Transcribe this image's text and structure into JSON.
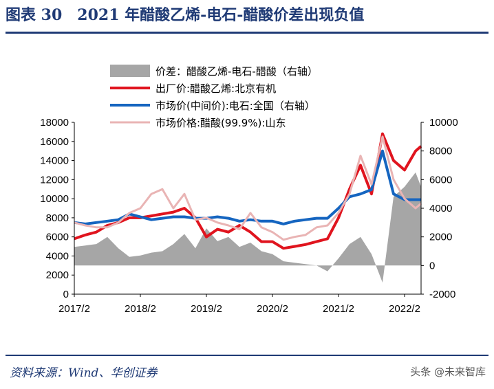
{
  "figure": {
    "title": "图表 30　2021 年醋酸乙烯-电石-醋酸价差出现负值",
    "source": "资料来源：Wind、华创证券",
    "watermark": "头条 @未来智库"
  },
  "colors": {
    "title_blue": "#1f3a75",
    "spread_gray": "#a6a6a6",
    "red": "#e0141e",
    "blue": "#1565c0",
    "pink": "#e9b4b4"
  },
  "chart_data": {
    "type": "line",
    "title": "",
    "xlabel": "",
    "ylabel": "",
    "x_ticks": [
      "2017/2",
      "2018/2",
      "2019/2",
      "2020/2",
      "2021/2",
      "2022/2"
    ],
    "xlim": [
      "2017-02",
      "2022-05"
    ],
    "left_axis": {
      "ylim": [
        0,
        18000
      ],
      "ticks": [
        0,
        2000,
        4000,
        6000,
        8000,
        10000,
        12000,
        14000,
        16000,
        18000
      ]
    },
    "right_axis": {
      "ylim": [
        -2000,
        10000
      ],
      "ticks": [
        -2000,
        0,
        2000,
        4000,
        6000,
        8000,
        10000
      ]
    },
    "legend": {
      "position": "top"
    },
    "grid": false,
    "series": [
      {
        "name": "价差：醋酸乙烯-电石-醋酸（右轴）",
        "kind": "area",
        "axis": "right",
        "color": "#a6a6a6",
        "x": [
          "2017-02",
          "2017-04",
          "2017-06",
          "2017-08",
          "2017-10",
          "2017-12",
          "2018-02",
          "2018-04",
          "2018-06",
          "2018-08",
          "2018-10",
          "2018-12",
          "2019-02",
          "2019-04",
          "2019-06",
          "2019-08",
          "2019-10",
          "2019-12",
          "2020-02",
          "2020-04",
          "2020-06",
          "2020-08",
          "2020-10",
          "2020-12",
          "2021-02",
          "2021-04",
          "2021-06",
          "2021-08",
          "2021-10",
          "2021-12",
          "2022-02",
          "2022-04",
          "2022-05"
        ],
        "values": [
          1300,
          1400,
          1500,
          2000,
          1200,
          600,
          700,
          900,
          1000,
          1500,
          2200,
          1200,
          2600,
          1700,
          2000,
          1300,
          1600,
          1000,
          800,
          300,
          200,
          100,
          0,
          -400,
          500,
          1500,
          2000,
          800,
          -1200,
          4800,
          5500,
          6500,
          5500
        ]
      },
      {
        "name": "出厂价:醋酸乙烯:北京有机",
        "kind": "line",
        "axis": "left",
        "color": "#e0141e",
        "x": [
          "2017-02",
          "2017-04",
          "2017-06",
          "2017-08",
          "2017-10",
          "2017-12",
          "2018-02",
          "2018-04",
          "2018-06",
          "2018-08",
          "2018-10",
          "2018-12",
          "2019-02",
          "2019-04",
          "2019-06",
          "2019-08",
          "2019-10",
          "2019-12",
          "2020-02",
          "2020-04",
          "2020-06",
          "2020-08",
          "2020-10",
          "2020-12",
          "2021-02",
          "2021-04",
          "2021-06",
          "2021-08",
          "2021-10",
          "2021-12",
          "2022-02",
          "2022-04",
          "2022-05"
        ],
        "values": [
          5800,
          6200,
          6500,
          7200,
          7500,
          8000,
          8000,
          8200,
          8400,
          8600,
          9000,
          8000,
          6000,
          6800,
          6500,
          7200,
          6500,
          5500,
          5500,
          4800,
          5000,
          5200,
          5500,
          5800,
          8000,
          11000,
          13500,
          10500,
          16800,
          14000,
          13000,
          15000,
          15500
        ]
      },
      {
        "name": "市场价(中间价):电石:全国（右轴）",
        "kind": "line",
        "axis": "right",
        "color": "#1565c0",
        "x": [
          "2017-02",
          "2017-04",
          "2017-06",
          "2017-08",
          "2017-10",
          "2017-12",
          "2018-02",
          "2018-04",
          "2018-06",
          "2018-08",
          "2018-10",
          "2018-12",
          "2019-02",
          "2019-04",
          "2019-06",
          "2019-08",
          "2019-10",
          "2019-12",
          "2020-02",
          "2020-04",
          "2020-06",
          "2020-08",
          "2020-10",
          "2020-12",
          "2021-02",
          "2021-04",
          "2021-06",
          "2021-08",
          "2021-10",
          "2021-12",
          "2022-02",
          "2022-04",
          "2022-05"
        ],
        "values": [
          3000,
          2900,
          3000,
          3100,
          3200,
          3600,
          3400,
          3200,
          3300,
          3400,
          3400,
          3300,
          3300,
          3400,
          3300,
          3100,
          3200,
          3100,
          3100,
          2900,
          3100,
          3200,
          3300,
          3300,
          4000,
          4800,
          5000,
          5300,
          8000,
          5000,
          4600,
          4600,
          4600
        ]
      },
      {
        "name": "市场价格:醋酸(99.9%):山东",
        "kind": "line",
        "axis": "left",
        "color": "#e9b4b4",
        "x": [
          "2017-02",
          "2017-04",
          "2017-06",
          "2017-08",
          "2017-10",
          "2017-12",
          "2018-02",
          "2018-04",
          "2018-06",
          "2018-08",
          "2018-10",
          "2018-12",
          "2019-02",
          "2019-04",
          "2019-06",
          "2019-08",
          "2019-10",
          "2019-12",
          "2020-02",
          "2020-04",
          "2020-06",
          "2020-08",
          "2020-10",
          "2020-12",
          "2021-02",
          "2021-04",
          "2021-06",
          "2021-08",
          "2021-10",
          "2021-12",
          "2022-02",
          "2022-04",
          "2022-05"
        ],
        "values": [
          7500,
          7200,
          7000,
          7000,
          7500,
          8500,
          9000,
          10500,
          11000,
          9000,
          10500,
          7800,
          8000,
          7500,
          7200,
          6800,
          8500,
          7000,
          6500,
          5700,
          6000,
          6200,
          7000,
          7200,
          8500,
          10500,
          14500,
          11500,
          16500,
          12000,
          10000,
          9000,
          9500
        ]
      }
    ]
  }
}
